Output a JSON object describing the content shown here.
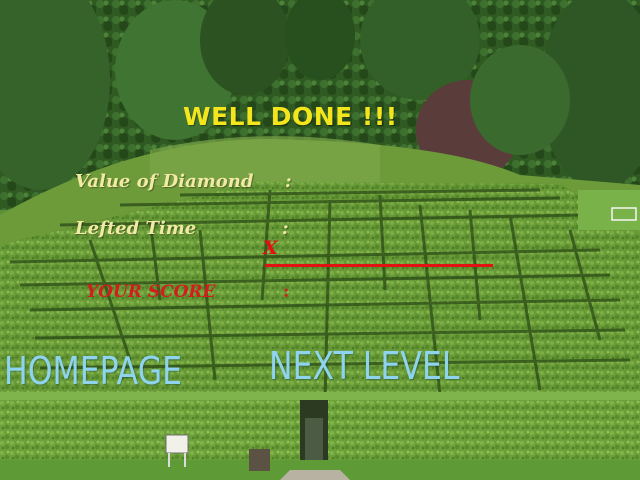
{
  "result": {
    "title": "WELL DONE !!!",
    "diamond_label": "Value of Diamond",
    "diamond_colon": ":",
    "time_label": "Lefted Time",
    "time_colon": ":",
    "multiply_sign": "X",
    "score_label": "YOUR SCORE",
    "score_colon": ":"
  },
  "buttons": {
    "homepage": "HOMEPAGE",
    "next_level": "NEXT LEVEL"
  },
  "colors": {
    "title": "#f4e51c",
    "labels": "#f2eaa4",
    "score": "#d31c1c",
    "buttons": "#8fd4ee"
  }
}
